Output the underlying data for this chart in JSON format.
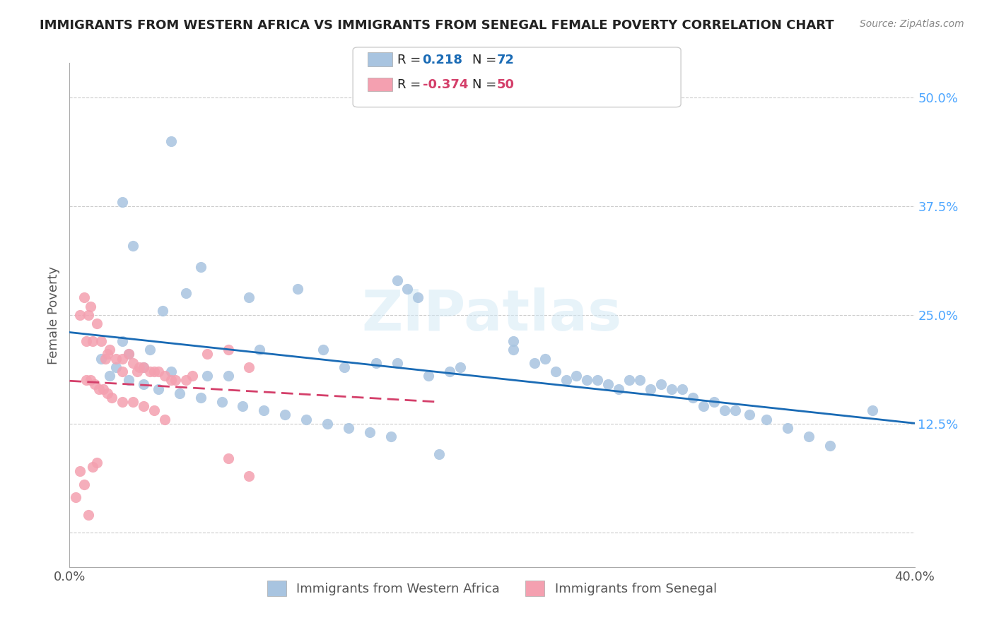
{
  "title": "IMMIGRANTS FROM WESTERN AFRICA VS IMMIGRANTS FROM SENEGAL FEMALE POVERTY CORRELATION CHART",
  "source": "Source: ZipAtlas.com",
  "xlabel_bottom": "",
  "ylabel": "Female Poverty",
  "x_ticks": [
    0.0,
    0.05,
    0.1,
    0.15,
    0.2,
    0.25,
    0.3,
    0.35,
    0.4
  ],
  "x_tick_labels": [
    "0.0%",
    "",
    "",
    "",
    "",
    "",
    "",
    "",
    "40.0%"
  ],
  "y_ticks": [
    0.0,
    0.125,
    0.25,
    0.375,
    0.5
  ],
  "y_tick_labels": [
    "",
    "12.5%",
    "25.0%",
    "37.5%",
    "50.0%"
  ],
  "xlim": [
    0.0,
    0.4
  ],
  "ylim": [
    -0.04,
    0.54
  ],
  "r_blue": 0.218,
  "n_blue": 72,
  "r_pink": -0.374,
  "n_pink": 50,
  "legend_label_blue": "Immigrants from Western Africa",
  "legend_label_pink": "Immigrants from Senegal",
  "watermark": "ZIPatlas",
  "blue_color": "#a8c4e0",
  "pink_color": "#f4a0b0",
  "blue_line_color": "#1a6bb5",
  "pink_line_color": "#d43f6a",
  "background_color": "#ffffff",
  "scatter_blue_x": [
    0.048,
    0.03,
    0.062,
    0.025,
    0.085,
    0.108,
    0.044,
    0.055,
    0.025,
    0.038,
    0.028,
    0.035,
    0.015,
    0.022,
    0.048,
    0.065,
    0.075,
    0.09,
    0.12,
    0.13,
    0.145,
    0.155,
    0.16,
    0.155,
    0.17,
    0.18,
    0.185,
    0.21,
    0.21,
    0.22,
    0.225,
    0.23,
    0.235,
    0.24,
    0.245,
    0.25,
    0.255,
    0.26,
    0.265,
    0.27,
    0.275,
    0.28,
    0.285,
    0.29,
    0.295,
    0.3,
    0.305,
    0.31,
    0.315,
    0.322,
    0.33,
    0.34,
    0.35,
    0.36,
    0.38,
    0.019,
    0.028,
    0.035,
    0.042,
    0.052,
    0.062,
    0.072,
    0.082,
    0.092,
    0.102,
    0.112,
    0.122,
    0.132,
    0.142,
    0.152,
    0.165,
    0.175
  ],
  "scatter_blue_y": [
    0.45,
    0.33,
    0.305,
    0.38,
    0.27,
    0.28,
    0.255,
    0.275,
    0.22,
    0.21,
    0.205,
    0.19,
    0.2,
    0.19,
    0.185,
    0.18,
    0.18,
    0.21,
    0.21,
    0.19,
    0.195,
    0.195,
    0.28,
    0.29,
    0.18,
    0.185,
    0.19,
    0.21,
    0.22,
    0.195,
    0.2,
    0.185,
    0.175,
    0.18,
    0.175,
    0.175,
    0.17,
    0.165,
    0.175,
    0.175,
    0.165,
    0.17,
    0.165,
    0.165,
    0.155,
    0.145,
    0.15,
    0.14,
    0.14,
    0.135,
    0.13,
    0.12,
    0.11,
    0.1,
    0.14,
    0.18,
    0.175,
    0.17,
    0.165,
    0.16,
    0.155,
    0.15,
    0.145,
    0.14,
    0.135,
    0.13,
    0.125,
    0.12,
    0.115,
    0.11,
    0.27,
    0.09
  ],
  "scatter_pink_x": [
    0.005,
    0.007,
    0.008,
    0.009,
    0.01,
    0.011,
    0.013,
    0.015,
    0.017,
    0.018,
    0.019,
    0.022,
    0.025,
    0.028,
    0.03,
    0.033,
    0.035,
    0.038,
    0.04,
    0.045,
    0.05,
    0.055,
    0.065,
    0.075,
    0.085,
    0.025,
    0.032,
    0.042,
    0.048,
    0.058,
    0.008,
    0.01,
    0.012,
    0.014,
    0.016,
    0.018,
    0.02,
    0.025,
    0.03,
    0.035,
    0.04,
    0.045,
    0.075,
    0.085,
    0.003,
    0.005,
    0.007,
    0.009,
    0.011,
    0.013
  ],
  "scatter_pink_y": [
    0.25,
    0.27,
    0.22,
    0.25,
    0.26,
    0.22,
    0.24,
    0.22,
    0.2,
    0.205,
    0.21,
    0.2,
    0.2,
    0.205,
    0.195,
    0.19,
    0.19,
    0.185,
    0.185,
    0.18,
    0.175,
    0.175,
    0.205,
    0.21,
    0.19,
    0.185,
    0.185,
    0.185,
    0.175,
    0.18,
    0.175,
    0.175,
    0.17,
    0.165,
    0.165,
    0.16,
    0.155,
    0.15,
    0.15,
    0.145,
    0.14,
    0.13,
    0.085,
    0.065,
    0.04,
    0.07,
    0.055,
    0.02,
    0.075,
    0.08
  ]
}
